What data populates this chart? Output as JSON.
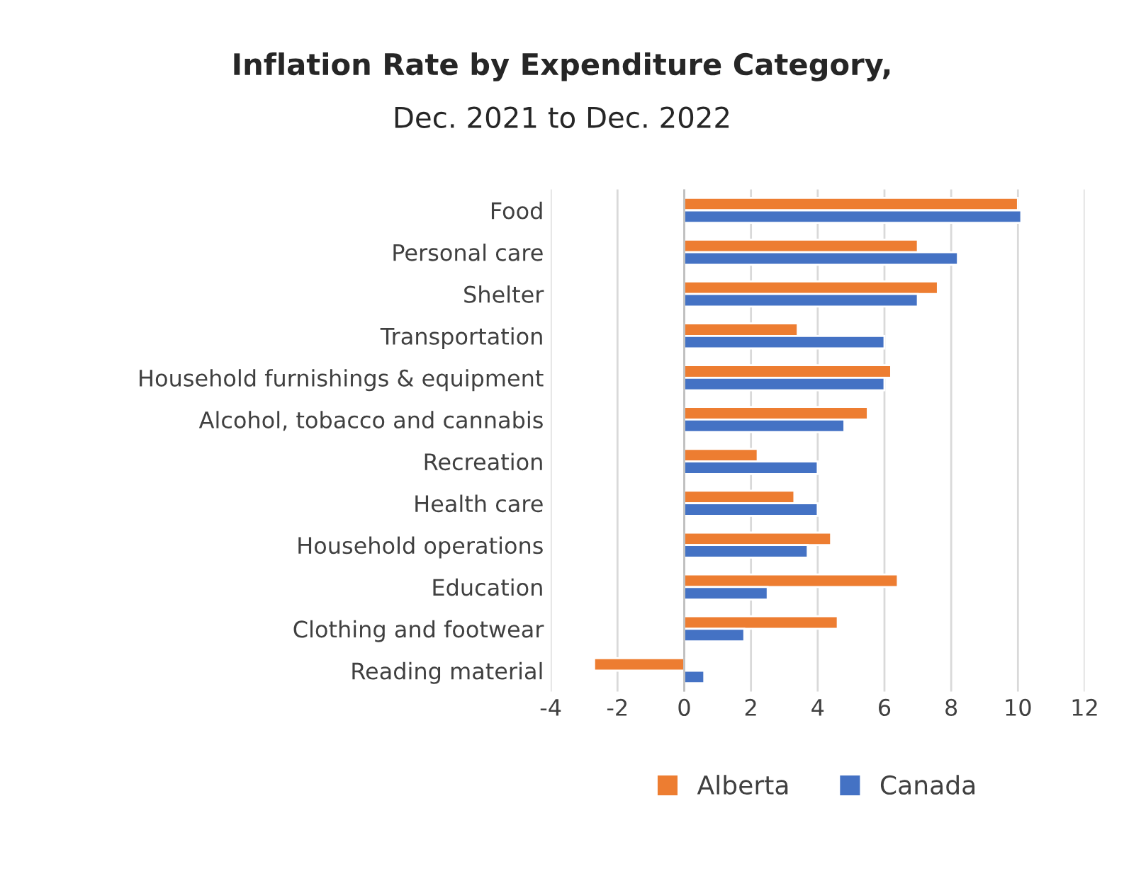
{
  "chart_data": {
    "type": "bar",
    "orientation": "horizontal",
    "title": "Inflation Rate by Expenditure Category,",
    "subtitle": "Dec. 2021 to Dec. 2022",
    "categories": [
      "Food",
      "Personal care",
      "Shelter",
      "Transportation",
      "Household furnishings & equipment",
      "Alcohol, tobacco and cannabis",
      "Recreation",
      "Health care",
      "Household operations",
      "Education",
      "Clothing and footwear",
      "Reading material"
    ],
    "series": [
      {
        "name": "Alberta",
        "color": "#ed7d31",
        "values": [
          10.0,
          7.0,
          7.6,
          3.4,
          6.2,
          5.5,
          2.2,
          3.3,
          4.4,
          6.4,
          4.6,
          -2.7
        ]
      },
      {
        "name": "Canada",
        "color": "#4472c4",
        "values": [
          10.1,
          8.2,
          7.0,
          6.0,
          6.0,
          4.8,
          4.0,
          4.0,
          3.7,
          2.5,
          1.8,
          0.6
        ]
      }
    ],
    "xlim": [
      -4,
      12
    ],
    "xticks": [
      -4,
      -2,
      0,
      2,
      4,
      6,
      8,
      10,
      12
    ],
    "grid": "x",
    "legend": "bottom"
  }
}
